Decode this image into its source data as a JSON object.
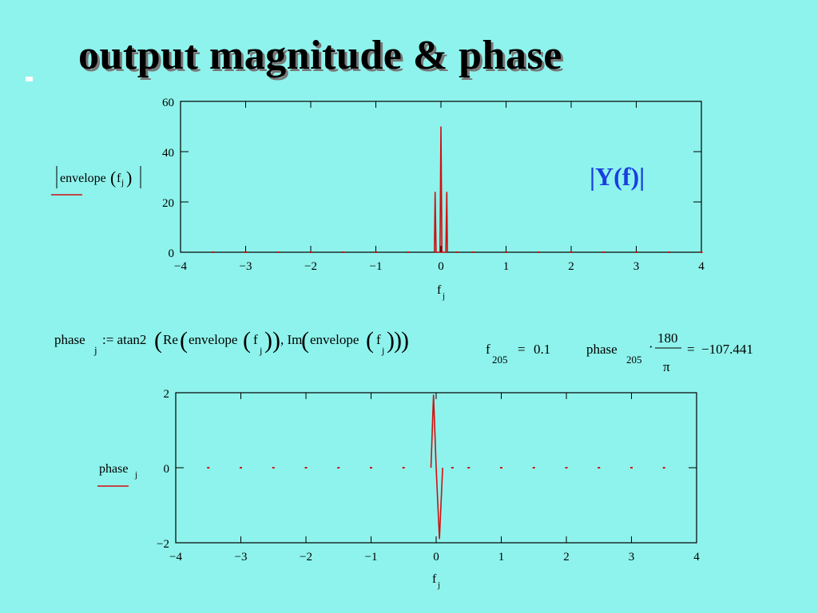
{
  "slide": {
    "title": "output magnitude & phase"
  },
  "math": {
    "assignment": "phase_j := atan2(Re(envelope(f_j)), Im(envelope(f_j)))",
    "eval1": "f_205 = 0.1",
    "eval2": "phase_205 · 180/π = −107.441",
    "eval2_value": "−107.441",
    "eval2_num": "180",
    "eval2_den": "π",
    "eval1_value": "0.1"
  },
  "chart_data": [
    {
      "type": "line",
      "ylabel": "|envelope(f_j)|",
      "xlabel": "f_j",
      "annotation": "|Y(f)|",
      "xlim": [
        -4,
        4
      ],
      "ylim": [
        0,
        60
      ],
      "x_ticks": [
        "−4",
        "−3",
        "−2",
        "−1",
        "0",
        "1",
        "2",
        "3",
        "4"
      ],
      "y_ticks": [
        "0",
        "20",
        "40",
        "60"
      ],
      "color": "#d01010",
      "x": [
        -4,
        -0.1,
        -0.09,
        -0.075,
        -0.06,
        -0.045,
        -0.03,
        -0.015,
        0,
        0.015,
        0.03,
        0.045,
        0.06,
        0.075,
        0.09,
        0.1,
        4
      ],
      "y": [
        0,
        0,
        24,
        0,
        0,
        0,
        0,
        0,
        50,
        0,
        0,
        0,
        0,
        0,
        24,
        0,
        0
      ],
      "dots_x": [
        -3.5,
        -3,
        -2.5,
        -2,
        -1.5,
        -1,
        -0.5,
        0.25,
        0.5,
        1,
        1.5,
        2,
        2.5,
        3,
        3.5,
        4
      ],
      "dots_y": 0
    },
    {
      "type": "line",
      "ylabel": "phase_j",
      "xlabel": "f_j",
      "xlim": [
        -4,
        4
      ],
      "ylim": [
        -2,
        2
      ],
      "x_ticks": [
        "−4",
        "−3",
        "−2",
        "−1",
        "0",
        "1",
        "2",
        "3",
        "4"
      ],
      "y_ticks": [
        "−2",
        "0",
        "2"
      ],
      "color": "#d01010",
      "x": [
        -0.08,
        -0.04,
        0,
        0.05,
        0.1
      ],
      "y": [
        0,
        1.95,
        0,
        -1.9,
        0
      ],
      "dots_x": [
        -3.5,
        -3,
        -2.5,
        -2,
        -1.5,
        -1,
        -0.5,
        0.25,
        0.5,
        1,
        1.5,
        2,
        2.5,
        3,
        3.5
      ],
      "dots_y": 0
    }
  ]
}
